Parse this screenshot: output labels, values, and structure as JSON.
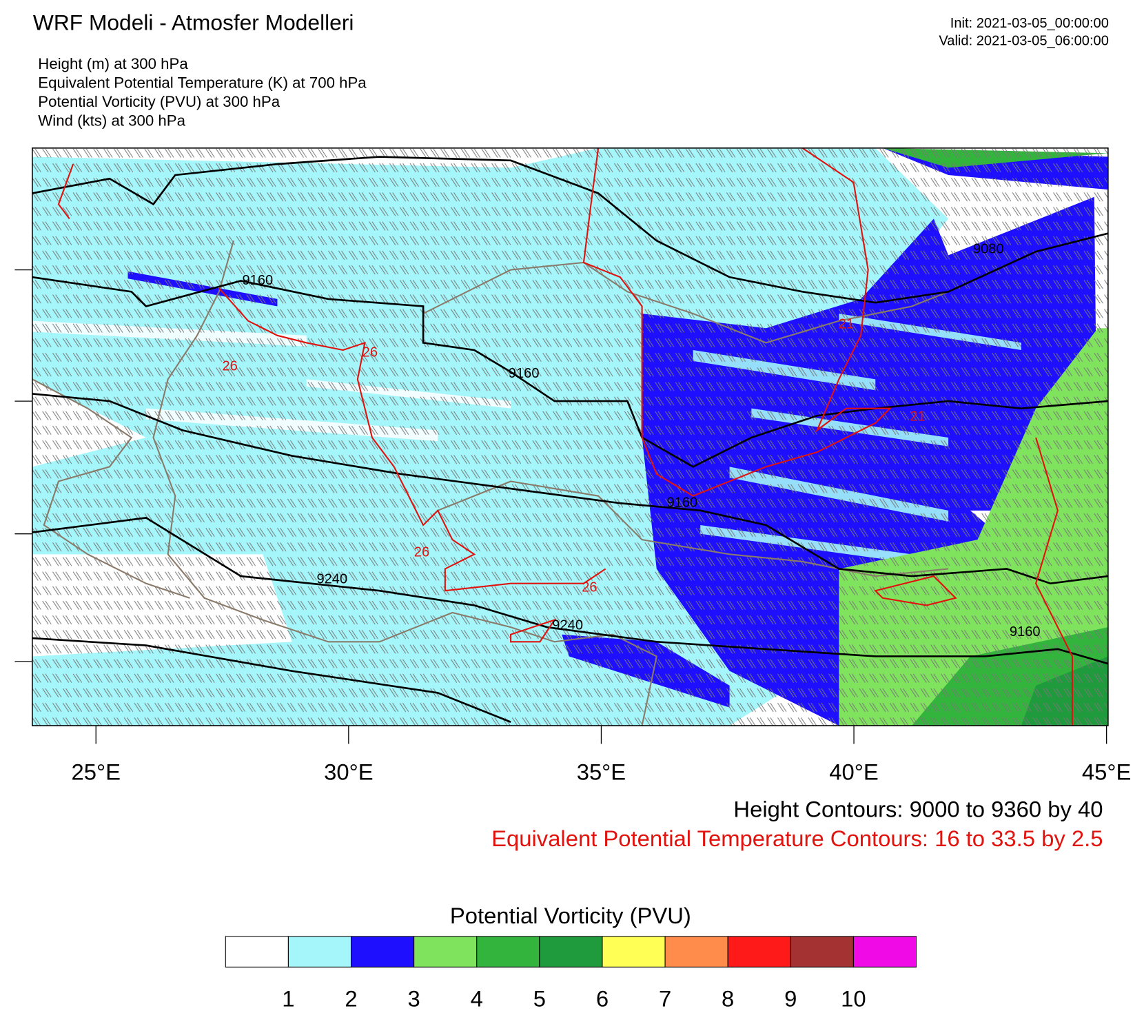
{
  "header": {
    "title": "WRF Modeli - Atmosfer Modelleri",
    "init": "Init: 2021-03-05_00:00:00",
    "valid": "Valid: 2021-03-05_06:00:00",
    "fields": [
      "Height   (m)     at   300 hPa",
      "Equivalent Potential Temperature   (K)     at   700 hPa",
      "Potential Vorticity   (PVU)     at   300 hPa",
      "Wind   (kts)     at   300 hPa"
    ]
  },
  "map": {
    "xlim": [
      23.74,
      45.03
    ],
    "xticks": [
      {
        "value": 25,
        "label": "25°E"
      },
      {
        "value": 30,
        "label": "30°E"
      },
      {
        "value": 35,
        "label": "35°E"
      },
      {
        "value": 40,
        "label": "40°E"
      },
      {
        "value": 45,
        "label": "45°E"
      }
    ],
    "contour_labels": [
      "9160",
      "26",
      "26",
      "9160",
      "9160",
      "26",
      "9240",
      "26",
      "9240",
      "21",
      "21",
      "9080",
      "9160"
    ]
  },
  "summary": {
    "height": "Height Contours: 9000 to 9360 by 40",
    "theta_e": "Equivalent Potential Temperature Contours: 16 to 33.5 by 2.5"
  },
  "colorbar": {
    "title": "Potential Vorticity  (PVU)",
    "levels": [
      1,
      2,
      3,
      4,
      5,
      6,
      7,
      8,
      9,
      10
    ],
    "colors": [
      "#ffffff",
      "#a4f6fa",
      "#1e10ff",
      "#80e35e",
      "#33b53d",
      "#1f9a3c",
      "#ffff55",
      "#ff8c4a",
      "#ff1a1a",
      "#a53232",
      "#f00ae6"
    ]
  }
}
